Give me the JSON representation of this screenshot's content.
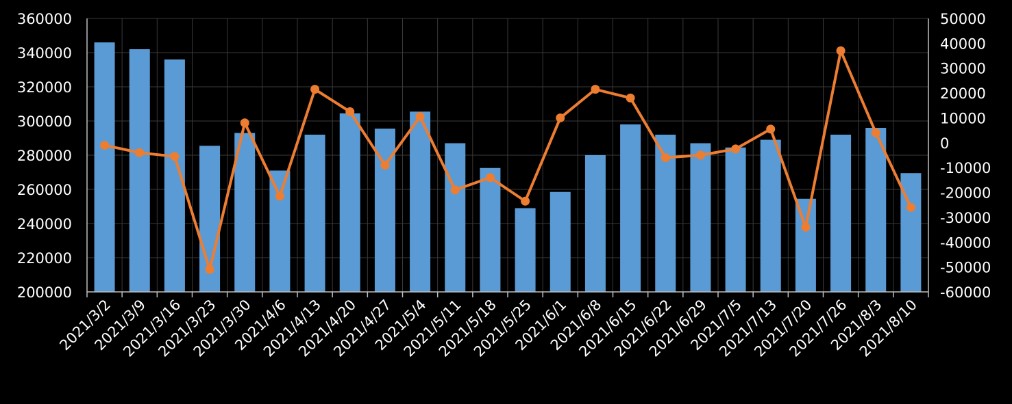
{
  "chart_data": {
    "type": "bar+line",
    "title": "",
    "categories": [
      "2021/3/2",
      "2021/3/9",
      "2021/3/16",
      "2021/3/23",
      "2021/3/30",
      "2021/4/6",
      "2021/4/13",
      "2021/4/20",
      "2021/4/27",
      "2021/5/4",
      "2021/5/11",
      "2021/5/18",
      "2021/5/25",
      "2021/6/1",
      "2021/6/8",
      "2021/6/15",
      "2021/6/22",
      "2021/6/29",
      "2021/7/5",
      "2021/7/13",
      "2021/7/20",
      "2021/7/26",
      "2021/8/3",
      "2021/8/10"
    ],
    "series": [
      {
        "name": "bar",
        "type": "bar",
        "axis": "left",
        "color": "#5b9bd5",
        "values": [
          346000,
          342000,
          336000,
          285500,
          293000,
          271000,
          292000,
          304500,
          295500,
          305500,
          287000,
          272500,
          249000,
          258500,
          280000,
          298000,
          292000,
          287000,
          284500,
          289000,
          254500,
          292000,
          296000,
          269500
        ]
      },
      {
        "name": "line",
        "type": "line",
        "axis": "right",
        "color": "#ed7d31",
        "values": [
          -1000,
          -4000,
          -5500,
          -51000,
          8000,
          -21500,
          21500,
          12500,
          -9000,
          10500,
          -19000,
          -14000,
          -23500,
          10000,
          21500,
          18000,
          -6000,
          -5000,
          -2500,
          5500,
          -34000,
          37000,
          4000,
          -26000
        ]
      }
    ],
    "y_left": {
      "min": 200000,
      "max": 360000,
      "ticks": [
        "200000",
        "220000",
        "240000",
        "260000",
        "280000",
        "300000",
        "320000",
        "340000",
        "360000"
      ]
    },
    "y_right": {
      "min": -60000,
      "max": 50000,
      "ticks": [
        "-60000",
        "-50000",
        "-40000",
        "-30000",
        "-20000",
        "-10000",
        "0",
        "10000",
        "20000",
        "30000",
        "40000",
        "50000"
      ]
    },
    "grid": true,
    "legend": "none",
    "background": "#000000",
    "grid_color": "#3a3a3a",
    "axis_color": "#bfbfbf",
    "text_color": "#ffffff"
  }
}
